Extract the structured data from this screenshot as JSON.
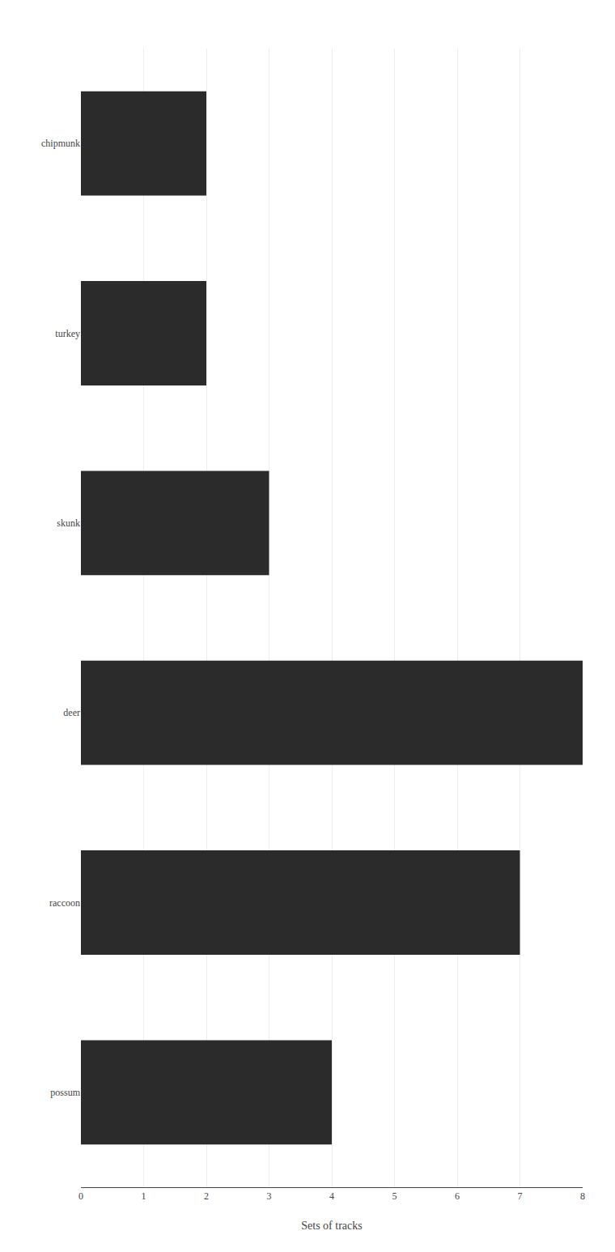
{
  "chart_data": {
    "type": "bar",
    "orientation": "horizontal",
    "categories": [
      "chipmunk",
      "turkey",
      "skunk",
      "deer",
      "raccoon",
      "possum"
    ],
    "values": [
      2,
      2,
      3,
      8,
      7,
      4
    ],
    "color": "#2b2b2b",
    "xlabel": "Sets of tracks",
    "xlim": [
      0,
      8
    ],
    "xticks": [
      0,
      1,
      2,
      3,
      4,
      5,
      6,
      7,
      8
    ],
    "grid": true
  }
}
